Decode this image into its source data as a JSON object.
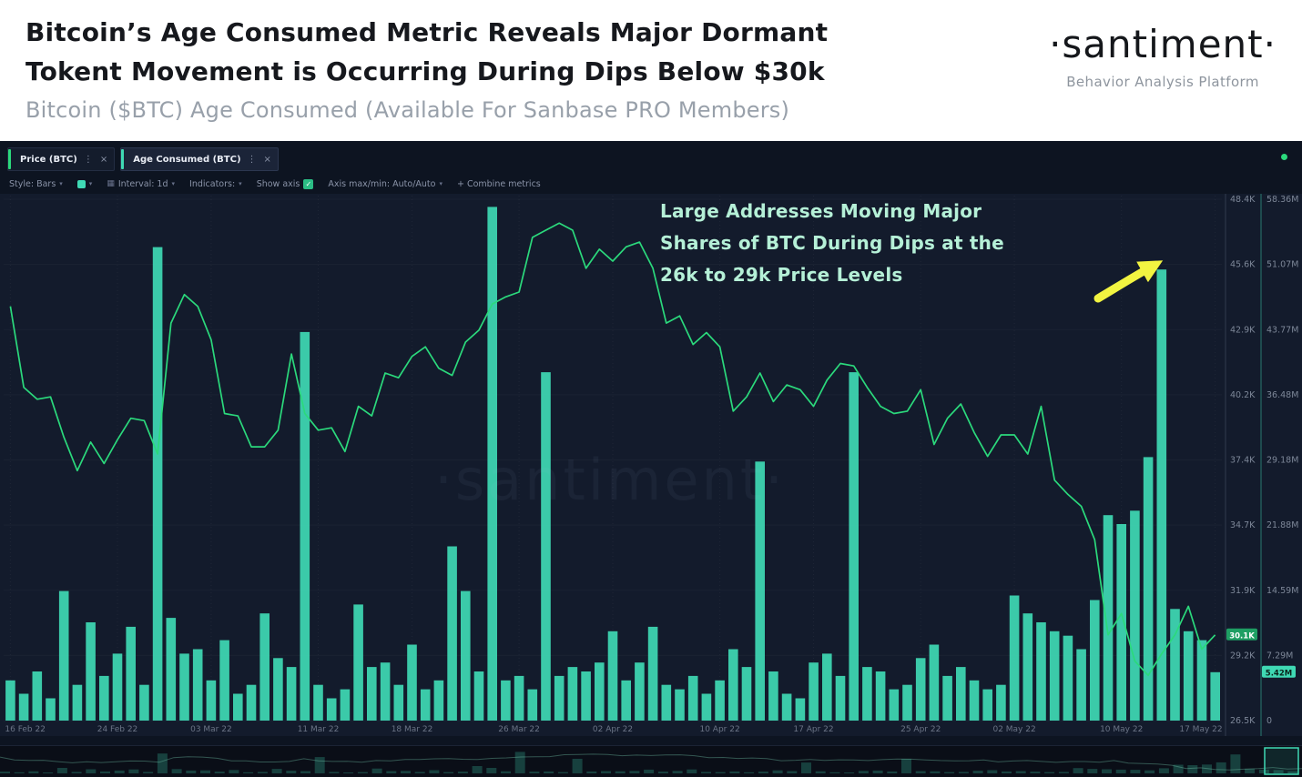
{
  "header": {
    "title_line1": "Bitcoin’s Age Consumed Metric Reveals Major Dormant",
    "title_line2": "Tokent Movement is Occurring During Dips Below $30k",
    "subtitle": "Bitcoin ($BTC) Age Consumed (Available For Sanbase PRO Members)",
    "logo": "·santiment·",
    "logo_tagline": "Behavior Analysis Platform"
  },
  "tabs": [
    {
      "label": "Price (BTC)",
      "active": false
    },
    {
      "label": "Age Consumed (BTC)",
      "active": true
    }
  ],
  "toolbar": {
    "style_label": "Style: Bars",
    "interval_label": "Interval: 1d",
    "indicators_label": "Indicators:",
    "show_axis_label": "Show axis",
    "axis_maxmin_label": "Axis max/min: Auto/Auto",
    "combine_label": "+  Combine metrics"
  },
  "annotation": {
    "line1": "Large Addresses Moving Major",
    "line2": "Shares of BTC During Dips at the",
    "line3": "26k to 29k Price Levels"
  },
  "watermark": "·santiment·",
  "badges": {
    "price": "30.1K",
    "age": "5.42M"
  },
  "colors": {
    "bar": "#3fd9b4",
    "line": "#2bd97c",
    "price_badge_bg": "#1e9e63",
    "age_badge_bg": "#3fd9b4",
    "arrow": "#f2f441",
    "annotation": "#b5f0d7",
    "live_dot": "#2bd97c"
  },
  "chart_data": {
    "type": "bar",
    "title": "Bitcoin ($BTC) Age Consumed",
    "x_range": [
      "16 Feb 22",
      "17 May 22"
    ],
    "x_unit": "day",
    "x_ticks": {
      "labels": [
        "16 Feb 22",
        "24 Feb 22",
        "03 Mar 22",
        "11 Mar 22",
        "18 Mar 22",
        "26 Mar 22",
        "02 Apr 22",
        "10 Apr 22",
        "17 Apr 22",
        "25 Apr 22",
        "02 May 22",
        "10 May 22",
        "17 May 22"
      ],
      "indices": [
        0,
        8,
        15,
        23,
        30,
        38,
        45,
        53,
        60,
        68,
        75,
        83,
        90
      ]
    },
    "price_axis": {
      "label": "Price (BTC), USD",
      "ticks": [
        "48.4K",
        "45.6K",
        "42.9K",
        "40.2K",
        "37.4K",
        "34.7K",
        "31.9K",
        "29.2K",
        "26.5K"
      ],
      "min": 26.5,
      "max": 48.4
    },
    "age_axis": {
      "label": "Age Consumed (BTC)",
      "ticks": [
        "58.36M",
        "51.07M",
        "43.77M",
        "36.48M",
        "29.18M",
        "21.88M",
        "14.59M",
        "7.29M",
        "0"
      ],
      "min": 0,
      "max": 58.36
    },
    "legend_position": "tabs-top-left",
    "grid": "faint-dotted-vertical",
    "series": [
      {
        "name": "Price (BTC)",
        "type": "line",
        "unit": "K USD",
        "color": "#2bd97c",
        "values": [
          43.9,
          40.5,
          40.0,
          40.1,
          38.4,
          37.0,
          38.2,
          37.3,
          38.3,
          39.2,
          39.1,
          37.7,
          43.2,
          44.4,
          43.9,
          42.5,
          39.4,
          39.3,
          38.0,
          38.0,
          38.7,
          41.9,
          39.4,
          38.7,
          38.8,
          37.8,
          39.7,
          39.3,
          41.1,
          40.9,
          41.8,
          42.2,
          41.3,
          41.0,
          42.4,
          42.9,
          44.0,
          44.3,
          44.5,
          46.8,
          47.1,
          47.4,
          47.1,
          45.5,
          46.3,
          45.8,
          46.4,
          46.6,
          45.5,
          43.2,
          43.5,
          42.3,
          42.8,
          42.2,
          39.5,
          40.1,
          41.1,
          39.9,
          40.6,
          40.4,
          39.7,
          40.8,
          41.5,
          41.4,
          40.5,
          39.7,
          39.4,
          39.5,
          40.4,
          38.1,
          39.2,
          39.8,
          38.6,
          37.6,
          38.5,
          38.5,
          37.7,
          39.7,
          36.6,
          36.0,
          35.5,
          34.1,
          30.1,
          31.0,
          29.0,
          28.4,
          29.3,
          30.1,
          31.3,
          29.5,
          30.1
        ]
      },
      {
        "name": "Age Consumed (BTC)",
        "type": "bar",
        "unit": "M",
        "color": "#3fd9b4",
        "values": [
          4.5,
          3.0,
          5.5,
          2.5,
          14.5,
          4.0,
          11.0,
          5.0,
          7.5,
          10.5,
          4.0,
          53.0,
          11.5,
          7.5,
          8.0,
          4.5,
          9.0,
          3.0,
          4.0,
          12.0,
          7.0,
          6.0,
          43.5,
          4.0,
          2.5,
          3.5,
          13.0,
          6.0,
          6.5,
          4.0,
          8.5,
          3.5,
          4.5,
          19.5,
          14.5,
          5.5,
          57.5,
          4.5,
          5.0,
          3.5,
          39.0,
          5.0,
          6.0,
          5.5,
          6.5,
          10.0,
          4.5,
          6.5,
          10.5,
          4.0,
          3.5,
          5.0,
          3.0,
          4.5,
          8.0,
          6.0,
          29.0,
          5.5,
          3.0,
          2.5,
          6.5,
          7.5,
          5.0,
          39.0,
          6.0,
          5.5,
          3.5,
          4.0,
          7.0,
          8.5,
          5.0,
          6.0,
          4.5,
          3.5,
          4.0,
          14.0,
          12.0,
          11.0,
          10.0,
          9.5,
          8.0,
          13.5,
          23.0,
          22.0,
          23.5,
          29.5,
          50.5,
          12.5,
          10.0,
          9.0,
          5.42
        ]
      }
    ],
    "current_values": {
      "price": "30.1K",
      "age_consumed": "5.42M"
    }
  }
}
